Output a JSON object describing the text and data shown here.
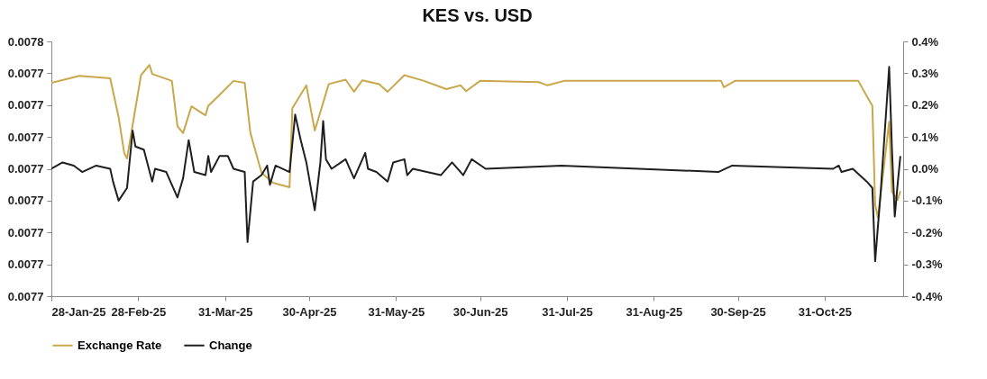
{
  "chart_data": {
    "type": "line",
    "title": "KES vs. USD",
    "legend": "bottom",
    "xlim": [
      "2025-01-28",
      "2025-11-28"
    ],
    "xticks": [
      {
        "value": "2025-01-28",
        "label": "28-Jan-25"
      },
      {
        "value": "2025-02-28",
        "label": "28-Feb-25"
      },
      {
        "value": "2025-03-31",
        "label": "31-Mar-25"
      },
      {
        "value": "2025-04-30",
        "label": "30-Apr-25"
      },
      {
        "value": "2025-05-31",
        "label": "31-May-25"
      },
      {
        "value": "2025-06-30",
        "label": "30-Jun-25"
      },
      {
        "value": "2025-07-31",
        "label": "31-Jul-25"
      },
      {
        "value": "2025-08-31",
        "label": "31-Aug-25"
      },
      {
        "value": "2025-09-30",
        "label": "30-Sep-25"
      },
      {
        "value": "2025-10-31",
        "label": "31-Oct-25"
      }
    ],
    "ylim": [
      0.00771,
      0.00775
    ],
    "yticks": [
      {
        "value": 0.00771,
        "label": "0.0077"
      },
      {
        "value": 0.007715,
        "label": "0.0077"
      },
      {
        "value": 0.00772,
        "label": "0.0077"
      },
      {
        "value": 0.007725,
        "label": "0.0077"
      },
      {
        "value": 0.00773,
        "label": "0.0077"
      },
      {
        "value": 0.007735,
        "label": "0.0077"
      },
      {
        "value": 0.00774,
        "label": "0.0077"
      },
      {
        "value": 0.007745,
        "label": "0.0077"
      },
      {
        "value": 0.00775,
        "label": "0.0078"
      }
    ],
    "y2lim": [
      -0.4,
      0.4
    ],
    "y2ticks": [
      {
        "value": -0.4,
        "label": "-0.4%"
      },
      {
        "value": -0.3,
        "label": "-0.3%"
      },
      {
        "value": -0.2,
        "label": "-0.2%"
      },
      {
        "value": -0.1,
        "label": "-0.1%"
      },
      {
        "value": 0,
        "label": "0.0%"
      },
      {
        "value": 0.1,
        "label": "0.1%"
      },
      {
        "value": 0.2,
        "label": "0.2%"
      },
      {
        "value": 0.3,
        "label": "0.3%"
      },
      {
        "value": 0.4,
        "label": "0.4%"
      }
    ],
    "series": [
      {
        "name": "Exchange Rate",
        "color": "#c9a84c",
        "x": [
          "2025-01-28",
          "2025-02-07",
          "2025-02-18",
          "2025-02-21",
          "2025-02-23",
          "2025-02-24",
          "2025-02-27",
          "2025-03-01",
          "2025-03-04",
          "2025-03-05",
          "2025-03-12",
          "2025-03-14",
          "2025-03-16",
          "2025-03-19",
          "2025-03-24",
          "2025-03-25",
          "2025-03-29",
          "2025-04-03",
          "2025-04-07",
          "2025-04-09",
          "2025-04-13",
          "2025-04-17",
          "2025-04-23",
          "2025-04-24",
          "2025-04-29",
          "2025-05-02",
          "2025-05-07",
          "2025-05-13",
          "2025-05-16",
          "2025-05-19",
          "2025-05-25",
          "2025-05-28",
          "2025-06-03",
          "2025-06-10",
          "2025-06-18",
          "2025-06-23",
          "2025-06-25",
          "2025-06-30",
          "2025-07-21",
          "2025-07-24",
          "2025-07-30",
          "2025-09-24",
          "2025-09-25",
          "2025-09-29",
          "2025-11-12",
          "2025-11-15",
          "2025-11-17",
          "2025-11-18",
          "2025-11-19",
          "2025-11-23",
          "2025-11-24",
          "2025-11-26",
          "2025-11-27"
        ],
        "values": [
          0.0077435,
          0.0077446,
          0.0077442,
          0.0077381,
          0.0077325,
          0.0077316,
          0.0077395,
          0.0077447,
          0.0077463,
          0.0077449,
          0.0077438,
          0.0077367,
          0.0077356,
          0.0077398,
          0.0077384,
          0.0077399,
          0.0077416,
          0.0077438,
          0.0077435,
          0.0077357,
          0.0077294,
          0.0077278,
          0.0077271,
          0.0077395,
          0.0077431,
          0.007736,
          0.0077433,
          0.007744,
          0.0077421,
          0.0077439,
          0.0077433,
          0.0077421,
          0.0077447,
          0.0077438,
          0.0077425,
          0.0077431,
          0.0077422,
          0.0077438,
          0.0077436,
          0.0077431,
          0.0077438,
          0.0077438,
          0.0077428,
          0.0077438,
          0.0077438,
          0.0077414,
          0.0077399,
          0.0077244,
          0.0077223,
          0.0077374,
          0.0077264,
          0.0077251,
          0.0077265
        ]
      },
      {
        "name": "Change",
        "color": "#1f1f1f",
        "axis": "y2",
        "x": [
          "2025-01-28",
          "2025-02-01",
          "2025-02-05",
          "2025-02-08",
          "2025-02-13",
          "2025-02-18",
          "2025-02-19",
          "2025-02-21",
          "2025-02-24",
          "2025-02-26",
          "2025-02-27",
          "2025-03-02",
          "2025-03-05",
          "2025-03-06",
          "2025-03-10",
          "2025-03-14",
          "2025-03-16",
          "2025-03-18",
          "2025-03-20",
          "2025-03-24",
          "2025-03-25",
          "2025-03-26",
          "2025-03-29",
          "2025-04-01",
          "2025-04-03",
          "2025-04-07",
          "2025-04-08",
          "2025-04-10",
          "2025-04-13",
          "2025-04-15",
          "2025-04-16",
          "2025-04-18",
          "2025-04-23",
          "2025-04-25",
          "2025-04-27",
          "2025-04-29",
          "2025-05-02",
          "2025-05-04",
          "2025-05-05",
          "2025-05-06",
          "2025-05-08",
          "2025-05-13",
          "2025-05-16",
          "2025-05-20",
          "2025-05-21",
          "2025-05-24",
          "2025-05-28",
          "2025-05-30",
          "2025-06-03",
          "2025-06-04",
          "2025-06-06",
          "2025-06-16",
          "2025-06-20",
          "2025-06-24",
          "2025-06-27",
          "2025-07-02",
          "2025-07-29",
          "2025-09-23",
          "2025-09-28",
          "2025-11-03",
          "2025-11-05",
          "2025-11-06",
          "2025-11-10",
          "2025-11-15",
          "2025-11-17",
          "2025-11-18",
          "2025-11-20",
          "2025-11-23",
          "2025-11-24",
          "2025-11-25",
          "2025-11-26",
          "2025-11-27"
        ],
        "values": [
          0.0,
          0.02,
          0.01,
          -0.01,
          0.01,
          0.0,
          -0.04,
          -0.1,
          -0.06,
          0.12,
          0.07,
          0.06,
          -0.04,
          0.0,
          -0.01,
          -0.09,
          -0.03,
          0.09,
          -0.01,
          -0.02,
          0.04,
          -0.01,
          0.04,
          0.04,
          0.0,
          -0.01,
          -0.23,
          -0.04,
          -0.02,
          0.01,
          -0.05,
          0.01,
          -0.01,
          0.17,
          0.09,
          0.02,
          -0.13,
          0.02,
          0.15,
          0.03,
          0.0,
          0.03,
          -0.03,
          0.05,
          0.0,
          -0.01,
          -0.04,
          0.02,
          0.03,
          -0.02,
          0.0,
          -0.02,
          0.02,
          -0.02,
          0.03,
          0.0,
          0.01,
          -0.01,
          0.01,
          0.0,
          0.01,
          -0.01,
          0.0,
          -0.04,
          -0.06,
          -0.29,
          -0.07,
          0.32,
          0.06,
          -0.15,
          -0.05,
          0.04
        ]
      }
    ]
  }
}
